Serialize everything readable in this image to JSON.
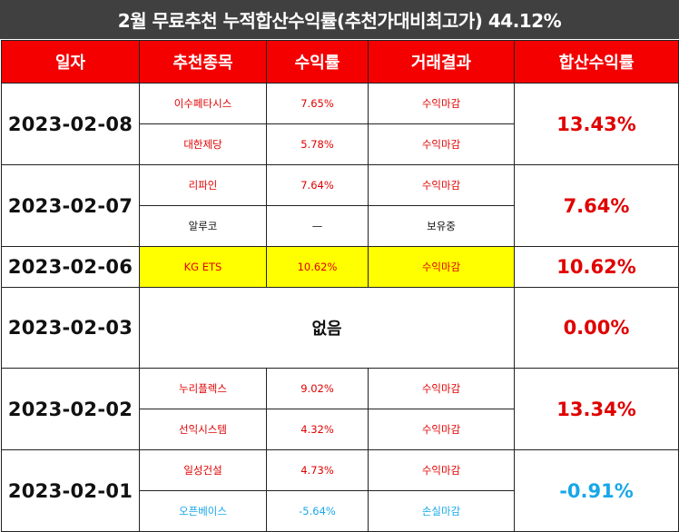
{
  "title": "2월 무료추천 누적합산수익률(추천가대비최고가) 44.12%",
  "headers": [
    "일자",
    "추천종목",
    "수익률",
    "거래결과",
    "합산수익률"
  ],
  "rows": [
    {
      "date": "2023-02-08",
      "total": "13.43%",
      "items": [
        {
          "name": "이수페타시스",
          "rate": "7.65%",
          "result": "수익마감"
        },
        {
          "name": "대한제당",
          "rate": "5.78%",
          "result": "수익마감"
        }
      ]
    },
    {
      "date": "2023-02-07",
      "total": "7.64%",
      "items": [
        {
          "name": "리파인",
          "rate": "7.64%",
          "result": "수익마감"
        },
        {
          "name": "알루코",
          "rate": "—",
          "result": "보유중"
        }
      ]
    },
    {
      "date": "2023-02-06",
      "total": "10.62%",
      "items": [
        {
          "name": "KG ETS",
          "rate": "10.62%",
          "result": "수익마감"
        }
      ]
    },
    {
      "date": "2023-02-03",
      "total": "0.00%",
      "none": "없음"
    },
    {
      "date": "2023-02-02",
      "total": "13.34%",
      "items": [
        {
          "name": "누리플렉스",
          "rate": "9.02%",
          "result": "수익마감"
        },
        {
          "name": "선익시스템",
          "rate": "4.32%",
          "result": "수익마감"
        }
      ]
    },
    {
      "date": "2023-02-01",
      "total": "-0.91%",
      "items": [
        {
          "name": "일성건설",
          "rate": "4.73%",
          "result": "수익마감"
        },
        {
          "name": "오픈베이스",
          "rate": "-5.64%",
          "result": "손실마감"
        }
      ]
    }
  ],
  "colors": {
    "header": "#f40000",
    "title_bg": "#404040",
    "profit": "#e00000",
    "loss": "#18a7e8",
    "highlight": "#ffff00"
  }
}
